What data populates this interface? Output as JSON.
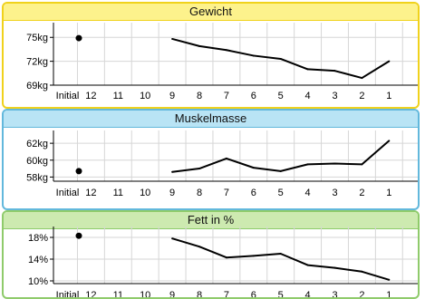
{
  "x_labels": [
    "Initial",
    "12",
    "11",
    "10",
    "9",
    "8",
    "7",
    "6",
    "5",
    "4",
    "3",
    "2",
    "1"
  ],
  "chart_data": [
    {
      "type": "line",
      "title": "Gewicht",
      "title_bg": "#fdf28c",
      "border": "#f0d21c",
      "ylim": [
        69,
        76.5
      ],
      "ytick_values": [
        69,
        72,
        75
      ],
      "ytick_labels": [
        "69kg",
        "72kg",
        "75kg"
      ],
      "initial": 74.9,
      "series_x": [
        "9",
        "8",
        "7",
        "6",
        "5",
        "4",
        "3",
        "2",
        "1"
      ],
      "series_y": [
        74.8,
        73.9,
        73.4,
        72.7,
        72.3,
        71.0,
        70.8,
        69.9,
        72.0
      ]
    },
    {
      "type": "line",
      "title": "Muskelmasse",
      "title_bg": "#b9e4f5",
      "border": "#62b8dc",
      "ylim": [
        57.5,
        63.2
      ],
      "ytick_values": [
        58,
        60,
        62
      ],
      "ytick_labels": [
        "58kg",
        "60kg",
        "62kg"
      ],
      "initial": 58.7,
      "series_x": [
        "9",
        "8",
        "7",
        "6",
        "5",
        "4",
        "3",
        "2",
        "1"
      ],
      "series_y": [
        58.6,
        59.0,
        60.2,
        59.1,
        58.7,
        59.5,
        59.6,
        59.5,
        62.3
      ]
    },
    {
      "type": "line",
      "title": "Fett in %",
      "title_bg": "#cdeab0",
      "border": "#8fcb6b",
      "ylim": [
        9.5,
        19.5
      ],
      "ytick_values": [
        10,
        14,
        18
      ],
      "ytick_labels": [
        "10%",
        "14%",
        "18%"
      ],
      "initial": 18.3,
      "series_x": [
        "9",
        "8",
        "7",
        "6",
        "5",
        "4",
        "3",
        "2",
        "1"
      ],
      "series_y": [
        17.8,
        16.3,
        14.3,
        14.6,
        15.0,
        12.9,
        12.4,
        11.7,
        10.2
      ]
    }
  ]
}
